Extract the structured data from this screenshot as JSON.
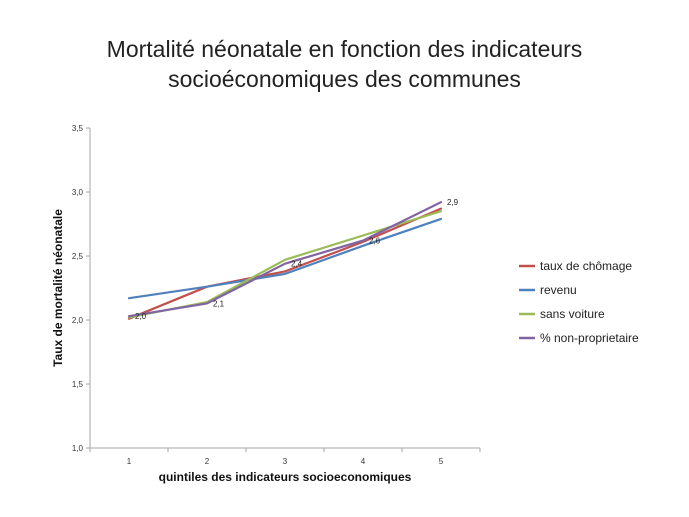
{
  "chart_data": {
    "type": "line",
    "title_line1": "Mortalité néonatale en fonction des indicateurs",
    "title_line2": "socioéconomiques des communes",
    "xlabel": "quintiles des indicateurs socioeconomiques",
    "ylabel": "Taux de mortalité néonatale",
    "categories": [
      "1",
      "2",
      "3",
      "4",
      "5"
    ],
    "yticks": [
      "1,0",
      "1,5",
      "2,0",
      "2,5",
      "3,0",
      "3,5"
    ],
    "ylim": [
      1.0,
      3.5
    ],
    "grid": false,
    "legend_position": "right",
    "series": [
      {
        "name": "taux de chômage",
        "color": "#c0504d",
        "values": [
          2.01,
          2.26,
          2.38,
          2.61,
          2.87
        ]
      },
      {
        "name": "revenu",
        "color": "#4f81bd",
        "values": [
          2.17,
          2.26,
          2.36,
          2.58,
          2.79
        ]
      },
      {
        "name": "sans voiture",
        "color": "#9bbb59",
        "values": [
          2.02,
          2.14,
          2.47,
          2.66,
          2.85
        ]
      },
      {
        "name": "% non-proprietaire",
        "color": "#8064a2",
        "values": [
          2.03,
          2.13,
          2.44,
          2.62,
          2.92
        ]
      }
    ],
    "data_labels": [
      {
        "category": "1",
        "y": 2.03,
        "text": "2,0"
      },
      {
        "category": "2",
        "y": 2.13,
        "text": "2,1"
      },
      {
        "category": "3",
        "y": 2.44,
        "text": "2,4"
      },
      {
        "category": "4",
        "y": 2.62,
        "text": "2,6"
      },
      {
        "category": "5",
        "y": 2.92,
        "text": "2,9"
      }
    ]
  }
}
